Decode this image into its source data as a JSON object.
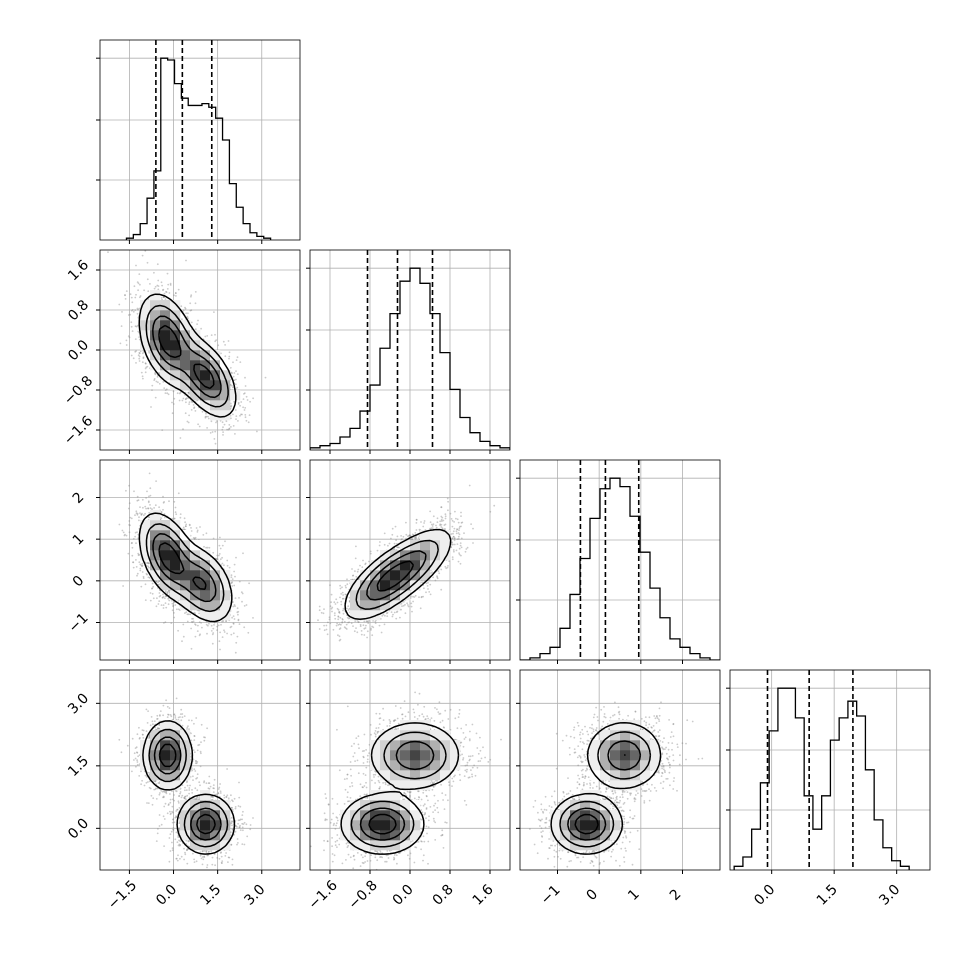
{
  "chart_data": {
    "type": "corner",
    "title": "",
    "variables": [
      {
        "range": [
          -2.5,
          4.3
        ],
        "ticks": [
          -1.5,
          0.0,
          1.5,
          3.0
        ],
        "tick_labels": [
          "−1.5",
          "0.0",
          "1.5",
          "3.0"
        ],
        "quantiles": [
          -0.6,
          0.3,
          1.3
        ],
        "hist_edges_range": [
          -1.6,
          3.3
        ],
        "hist_counts": [
          1,
          3,
          9,
          23,
          38,
          100,
          99,
          86,
          78,
          74,
          74,
          75,
          73,
          67,
          55,
          31,
          18,
          9,
          4,
          2,
          1
        ]
      },
      {
        "range": [
          -2.0,
          2.0
        ],
        "ticks": [
          -1.6,
          -0.8,
          0.0,
          0.8,
          1.6
        ],
        "tick_labels": [
          "−1.6",
          "−0.8",
          "0.0",
          "0.8",
          "1.6"
        ],
        "quantiles": [
          -0.85,
          -0.25,
          0.45
        ],
        "hist_edges_range": [
          -2.0,
          2.0
        ],
        "hist_counts": [
          1,
          2,
          3,
          6,
          10,
          18,
          30,
          47,
          63,
          78,
          84,
          77,
          63,
          45,
          28,
          15,
          8,
          4,
          2,
          1
        ]
      },
      {
        "range": [
          -1.9,
          2.9
        ],
        "ticks": [
          -1,
          0,
          1,
          2
        ],
        "tick_labels": [
          "−1",
          "0",
          "1",
          "2"
        ],
        "quantiles": [
          -0.45,
          0.15,
          0.95
        ],
        "hist_edges_range": [
          -1.9,
          2.9
        ],
        "hist_counts": [
          0,
          1,
          3,
          6,
          15,
          31,
          48,
          67,
          81,
          86,
          82,
          68,
          51,
          34,
          20,
          10,
          6,
          3,
          1,
          0
        ]
      },
      {
        "range": [
          -1.0,
          3.8
        ],
        "ticks": [
          0.0,
          1.5,
          3.0
        ],
        "tick_labels": [
          "0.0",
          "1.5",
          "3.0"
        ],
        "quantiles": [
          -0.1,
          0.9,
          1.95
        ],
        "hist_edges_range": [
          -0.9,
          3.3
        ],
        "hist_counts": [
          2,
          7,
          22,
          47,
          75,
          98,
          98,
          82,
          40,
          22,
          40,
          70,
          82,
          91,
          83,
          54,
          27,
          12,
          5,
          2
        ]
      }
    ],
    "pairs": [
      {
        "row": 1,
        "col": 0,
        "modes": [
          {
            "mean": [
              -0.2,
              0.2
            ],
            "cov": [
              [
                0.22,
                -0.08
              ],
              [
                -0.08,
                0.2
              ]
            ],
            "w": 0.55
          },
          {
            "mean": [
              1.1,
              -0.55
            ],
            "cov": [
              [
                0.25,
                -0.1
              ],
              [
                -0.1,
                0.15
              ]
            ],
            "w": 0.45
          }
        ]
      },
      {
        "row": 2,
        "col": 0,
        "modes": [
          {
            "mean": [
              -0.2,
              0.6
            ],
            "cov": [
              [
                0.22,
                -0.1
              ],
              [
                -0.1,
                0.25
              ]
            ],
            "w": 0.55
          },
          {
            "mean": [
              1.0,
              -0.1
            ],
            "cov": [
              [
                0.25,
                -0.08
              ],
              [
                -0.08,
                0.2
              ]
            ],
            "w": 0.45
          }
        ]
      },
      {
        "row": 2,
        "col": 1,
        "modes": [
          {
            "mean": [
              -0.5,
              -0.05
            ],
            "cov": [
              [
                0.17,
                0.12
              ],
              [
                0.12,
                0.2
              ]
            ],
            "w": 0.6
          },
          {
            "mean": [
              0.1,
              0.45
            ],
            "cov": [
              [
                0.17,
                0.12
              ],
              [
                0.12,
                0.2
              ]
            ],
            "w": 0.4
          }
        ]
      },
      {
        "row": 3,
        "col": 0,
        "modes": [
          {
            "mean": [
              -0.2,
              1.75
            ],
            "cov": [
              [
                0.16,
                0
              ],
              [
                0,
                0.16
              ]
            ],
            "w": 0.5
          },
          {
            "mean": [
              1.1,
              0.1
            ],
            "cov": [
              [
                0.22,
                0
              ],
              [
                0,
                0.12
              ]
            ],
            "w": 0.5
          }
        ]
      },
      {
        "row": 3,
        "col": 1,
        "modes": [
          {
            "mean": [
              -0.55,
              0.1
            ],
            "cov": [
              [
                0.16,
                0
              ],
              [
                0,
                0.12
              ]
            ],
            "w": 0.5
          },
          {
            "mean": [
              0.1,
              1.75
            ],
            "cov": [
              [
                0.2,
                0
              ],
              [
                0,
                0.16
              ]
            ],
            "w": 0.5
          }
        ]
      },
      {
        "row": 3,
        "col": 2,
        "modes": [
          {
            "mean": [
              -0.3,
              0.1
            ],
            "cov": [
              [
                0.17,
                0
              ],
              [
                0,
                0.12
              ]
            ],
            "w": 0.5
          },
          {
            "mean": [
              0.6,
              1.75
            ],
            "cov": [
              [
                0.2,
                0
              ],
              [
                0,
                0.16
              ]
            ],
            "w": 0.5
          }
        ]
      }
    ],
    "style": {
      "line_color": "#000000",
      "grid_color": "#b0b0b0",
      "frame_color": "#000000",
      "scatter_color": "#8c8c8c",
      "density_shades": [
        "#ffffff",
        "#eeeeee",
        "#d2d2d2",
        "#b0b0b0",
        "#8a8a8a",
        "#666666",
        "#444444",
        "#222222"
      ]
    },
    "grid": true
  }
}
